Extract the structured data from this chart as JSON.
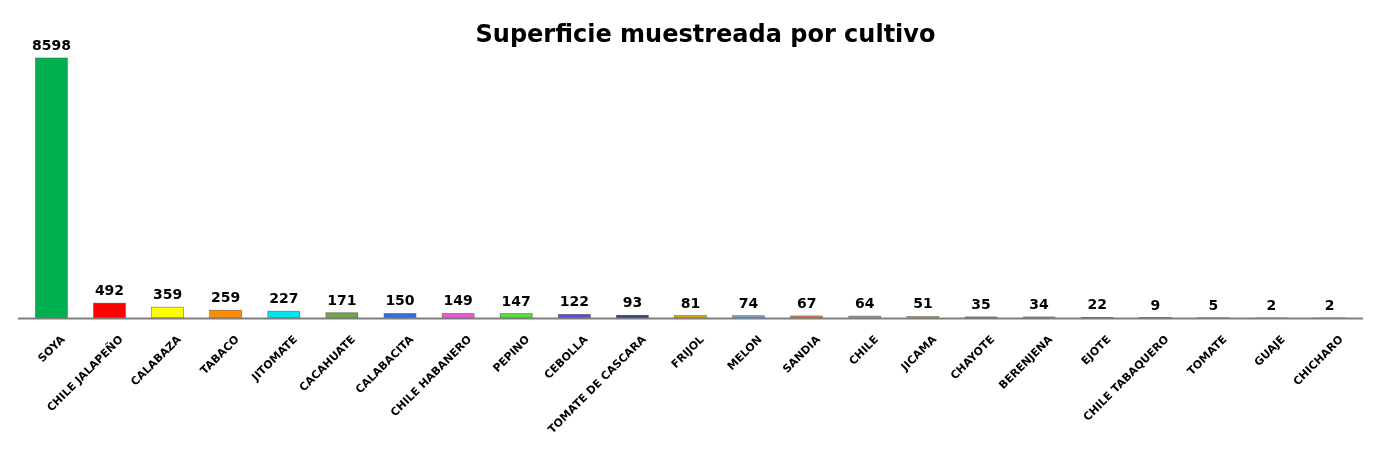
{
  "chart_data": {
    "type": "bar",
    "title": "Superficie muestreada por cultivo",
    "categories": [
      "SOYA",
      "CHILE JALAPEÑO",
      "CALABAZA",
      "TABACO",
      "JITOMATE",
      "CACAHUATE",
      "CALABACITA",
      "CHILE HABANERO",
      "PEPINO",
      "CEBOLLA",
      "TOMATE DE CASCARA",
      "FRIJOL",
      "MELON",
      "SANDIA",
      "CHILE",
      "JICAMA",
      "CHAYOTE",
      "BERENJENA",
      "EJOTE",
      "CHILE TABAQUERO",
      "TOMATE",
      "GUAJE",
      "CHICHARO"
    ],
    "values": [
      8598,
      492,
      359,
      259,
      227,
      171,
      150,
      149,
      147,
      122,
      93,
      81,
      74,
      67,
      64,
      51,
      35,
      34,
      22,
      9,
      5,
      2,
      2
    ],
    "colors": [
      "#00b050",
      "#ff0000",
      "#ffff00",
      "#ff8c00",
      "#00e5ee",
      "#70a845",
      "#2f6fe0",
      "#e85ad8",
      "#55e03a",
      "#5a4fdc",
      "#2c3e6e",
      "#e0a800",
      "#6fa3d8",
      "#e07b45",
      "#a6a6a6",
      "#d9ac2a",
      "#4a74c0",
      "#6aa84f",
      "#1f63b0",
      "#4a1a05",
      "#262626",
      "#3d2e00",
      "#0f1f45"
    ],
    "data_labels": true
  }
}
